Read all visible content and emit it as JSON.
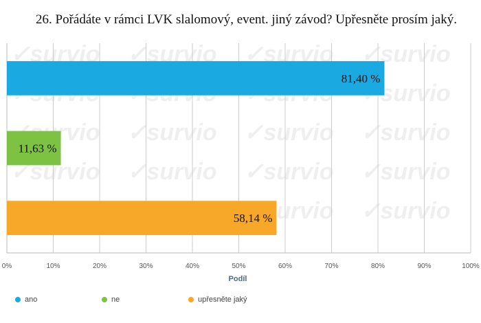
{
  "chart_data": {
    "type": "bar",
    "orientation": "horizontal",
    "title": "26. Pořádáte v rámci LVK slalomový, event. jiný závod? Upřesněte prosím jaký.",
    "xlabel": "Podíl",
    "ylabel": "",
    "xlim": [
      0,
      100
    ],
    "x_ticks": [
      "0%",
      "10%",
      "20%",
      "30%",
      "40%",
      "50%",
      "60%",
      "70%",
      "80%",
      "90%",
      "100%"
    ],
    "grid": true,
    "legend_position": "bottom",
    "categories": [
      "ano",
      "ne",
      "upřesněte jaký"
    ],
    "values": [
      81.4,
      11.63,
      58.14
    ],
    "value_labels": [
      "81,40 %",
      "11,63 %",
      "58,14 %"
    ],
    "colors": [
      "#1ba9e1",
      "#7dc243",
      "#f8a828"
    ]
  },
  "watermark": "survio"
}
